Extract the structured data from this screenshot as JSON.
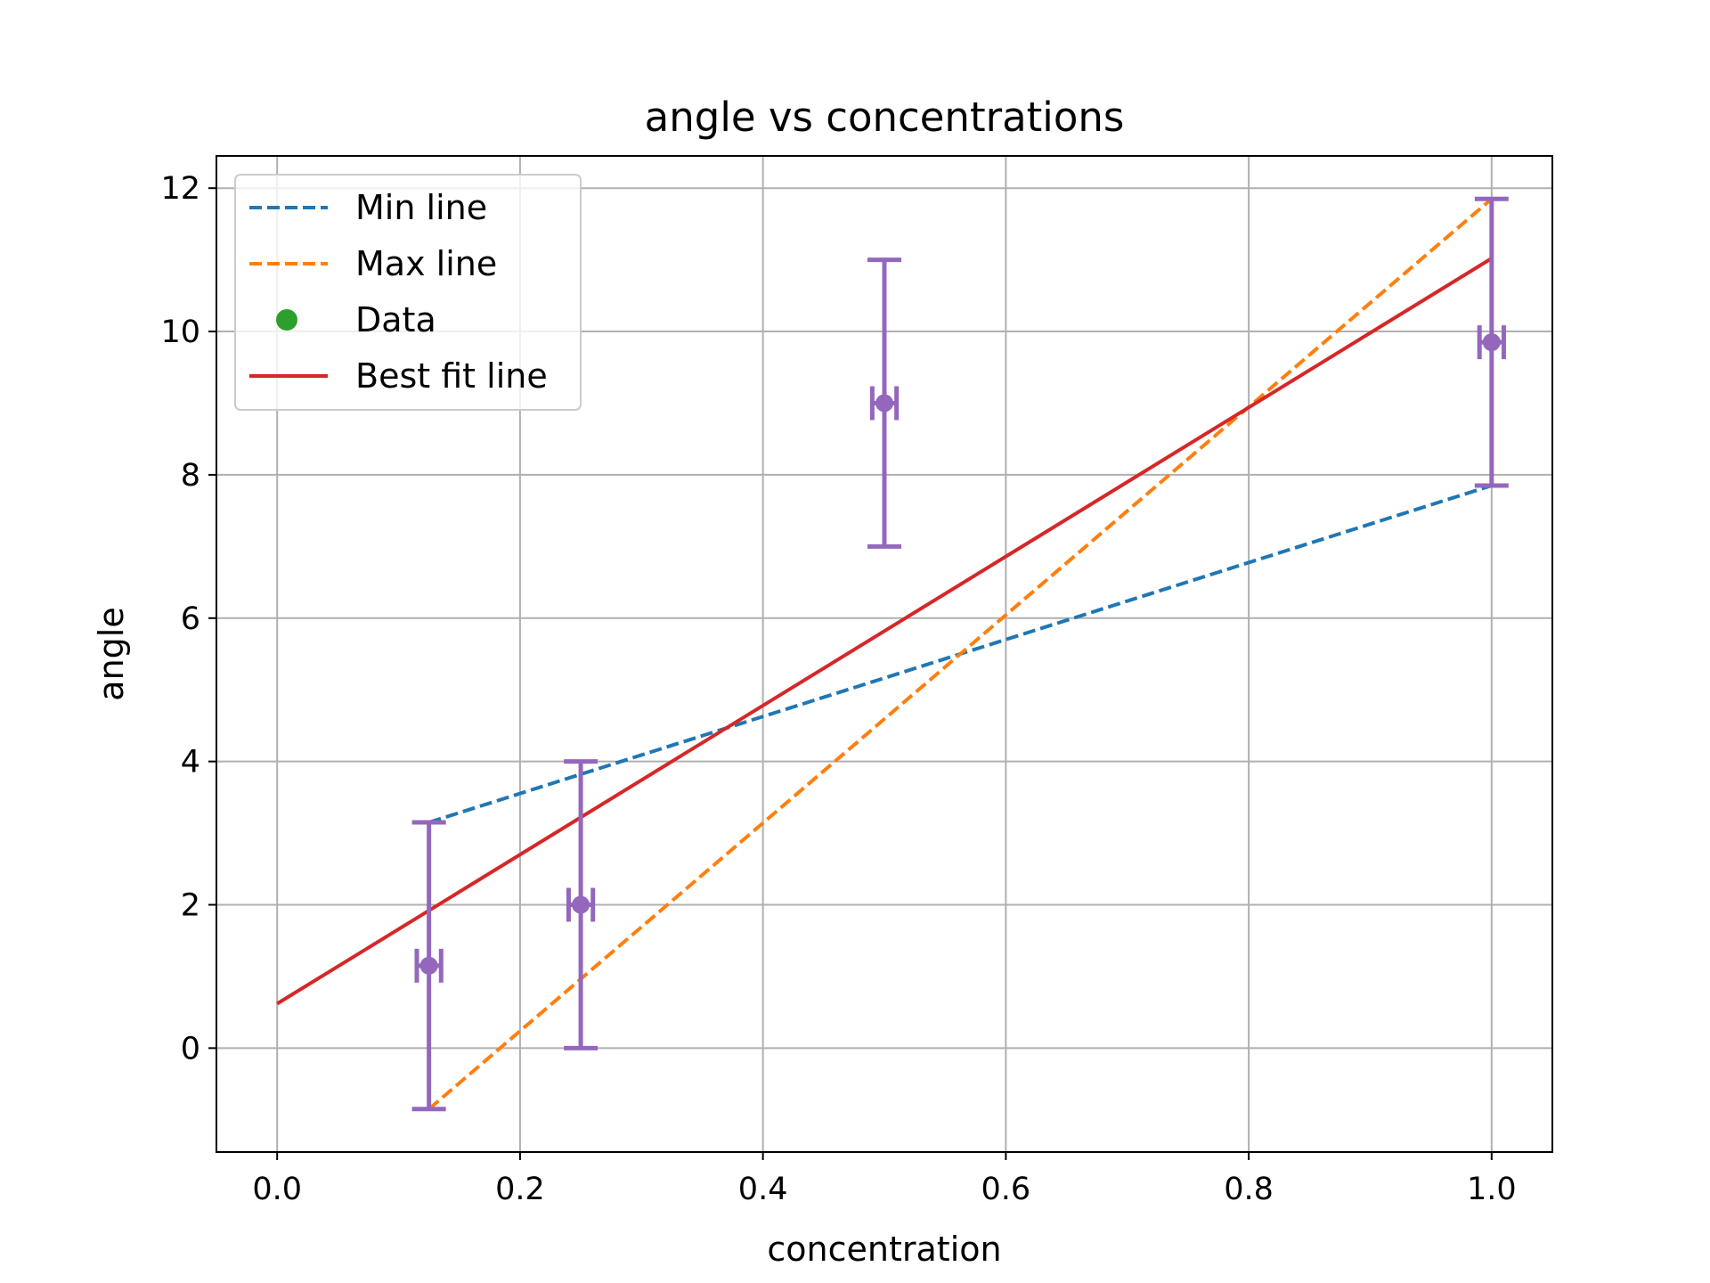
{
  "chart_data": {
    "type": "line",
    "title": "angle vs concentrations",
    "xlabel": "concentration",
    "ylabel": "angle",
    "xlim": [
      -0.05,
      1.05
    ],
    "ylim": [
      -1.45,
      12.45
    ],
    "xticks": [
      0.0,
      0.2,
      0.4,
      0.6,
      0.8,
      1.0
    ],
    "xtick_labels": [
      "0.0",
      "0.2",
      "0.4",
      "0.6",
      "0.8",
      "1.0"
    ],
    "yticks": [
      0,
      2,
      4,
      6,
      8,
      10,
      12
    ],
    "ytick_labels": [
      "0",
      "2",
      "4",
      "6",
      "8",
      "10",
      "12"
    ],
    "grid": true,
    "legend_position": "top-left",
    "series": [
      {
        "name": "Min line",
        "style": "dashed",
        "color": "#1f77b4",
        "x": [
          0.125,
          1.0
        ],
        "y": [
          3.15,
          7.85
        ]
      },
      {
        "name": "Max line",
        "style": "dashed",
        "color": "#ff7f0e",
        "x": [
          0.125,
          1.0
        ],
        "y": [
          -0.85,
          11.85
        ]
      },
      {
        "name": "Data",
        "style": "marker",
        "color": "#2ca02c",
        "errorbar_color": "#9467bd",
        "x": [
          0.125,
          0.25,
          0.5,
          1.0
        ],
        "y": [
          1.15,
          2.0,
          9.0,
          9.85
        ],
        "yerr": [
          2.0,
          2.0,
          2.0,
          2.0
        ],
        "xerr": [
          0.01,
          0.01,
          0.01,
          0.01
        ]
      },
      {
        "name": "Best fit line",
        "style": "solid",
        "color": "#d62728",
        "x": [
          0.0,
          1.0
        ],
        "y": [
          0.62,
          11.02
        ]
      }
    ]
  }
}
